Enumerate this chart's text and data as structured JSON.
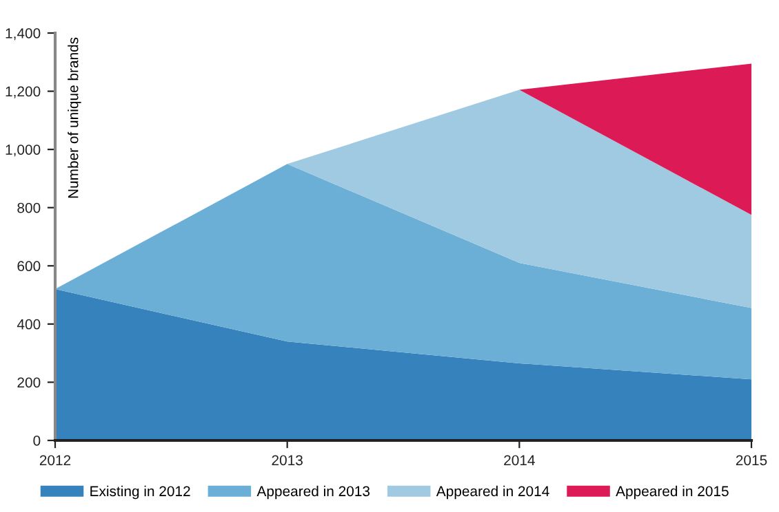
{
  "chart_data": {
    "type": "area",
    "stacked": true,
    "ylabel": "Number of unique brands",
    "x": [
      2012,
      2013,
      2014,
      2015
    ],
    "series": [
      {
        "name": "Existing in 2012",
        "color": "#3682bd",
        "values": [
          520,
          340,
          265,
          210
        ]
      },
      {
        "name": "Appeared in 2013",
        "color": "#6baed6",
        "values": [
          0,
          610,
          345,
          245
        ]
      },
      {
        "name": "Appeared in 2014",
        "color": "#a0cae1",
        "values": [
          null,
          0,
          595,
          320
        ]
      },
      {
        "name": "Appeared in 2015",
        "color": "#dc1a55",
        "values": [
          null,
          null,
          0,
          520
        ]
      }
    ],
    "xlim": [
      2012,
      2015
    ],
    "xticks": [
      2012,
      2013,
      2014,
      2015
    ],
    "ylim": [
      0,
      1400
    ],
    "yticks": [
      0,
      200,
      400,
      600,
      800,
      {
        "value": 1000,
        "label": "1,000"
      },
      {
        "value": 1200,
        "label": "1,200"
      },
      {
        "value": 1400,
        "label": "1,400"
      }
    ],
    "grid": false,
    "legend": "bottom"
  }
}
